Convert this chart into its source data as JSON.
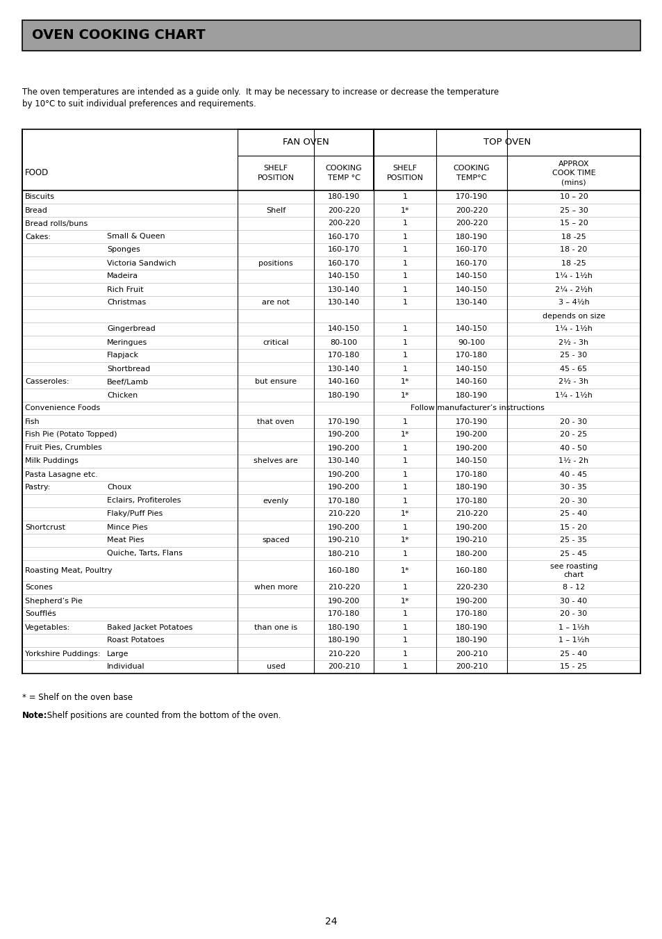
{
  "title": "OVEN COOKING CHART",
  "intro_text1": "The oven temperatures are intended as a guide only.  It may be necessary to increase or decrease the temperature",
  "intro_text2": "by 10°C to suit individual preferences and requirements.",
  "footer_note1": "* = Shelf on the oven base",
  "footer_note2_bold": "Note:",
  "footer_note2_rest": " Shelf positions are counted from the bottom of the oven.",
  "page_number": "24",
  "rows": [
    [
      "Biscuits",
      "",
      "",
      "180-190",
      "1",
      "170-190",
      "10 – 20"
    ],
    [
      "Bread",
      "",
      "Shelf",
      "200-220",
      "1*",
      "200-220",
      "25 – 30"
    ],
    [
      "Bread rolls/buns",
      "",
      "",
      "200-220",
      "1",
      "200-220",
      "15 – 20"
    ],
    [
      "Cakes:",
      "Small & Queen",
      "",
      "160-170",
      "1",
      "180-190",
      "18 -25"
    ],
    [
      "",
      "Sponges",
      "",
      "160-170",
      "1",
      "160-170",
      "18 - 20"
    ],
    [
      "",
      "Victoria Sandwich",
      "positions",
      "160-170",
      "1",
      "160-170",
      "18 -25"
    ],
    [
      "",
      "Madeira",
      "",
      "140-150",
      "1",
      "140-150",
      "1¼ - 1½h"
    ],
    [
      "",
      "Rich Fruit",
      "",
      "130-140",
      "1",
      "140-150",
      "2¼ - 2½h"
    ],
    [
      "",
      "Christmas",
      "are not",
      "130-140",
      "1",
      "130-140",
      "3 – 4½h"
    ],
    [
      "",
      "",
      "",
      "",
      "",
      "",
      "depends on size"
    ],
    [
      "",
      "Gingerbread",
      "",
      "140-150",
      "1",
      "140-150",
      "1¼ - 1½h"
    ],
    [
      "",
      "Meringues",
      "critical",
      "80-100",
      "1",
      "90-100",
      "2½ - 3h"
    ],
    [
      "",
      "Flapjack",
      "",
      "170-180",
      "1",
      "170-180",
      "25 - 30"
    ],
    [
      "",
      "Shortbread",
      "",
      "130-140",
      "1",
      "140-150",
      "45 - 65"
    ],
    [
      "Casseroles:",
      "Beef/Lamb",
      "but ensure",
      "140-160",
      "1*",
      "140-160",
      "2½ - 3h"
    ],
    [
      "",
      "Chicken",
      "",
      "180-190",
      "1*",
      "180-190",
      "1¼ - 1½h"
    ],
    [
      "Convenience Foods",
      "",
      "",
      "Follow manufacturer’s instructions",
      "",
      "",
      ""
    ],
    [
      "Fish",
      "",
      "that oven",
      "170-190",
      "1",
      "170-190",
      "20 - 30"
    ],
    [
      "Fish Pie (Potato Topped)",
      "",
      "",
      "190-200",
      "1*",
      "190-200",
      "20 - 25"
    ],
    [
      "Fruit Pies, Crumbles",
      "",
      "",
      "190-200",
      "1",
      "190-200",
      "40 - 50"
    ],
    [
      "Milk Puddings",
      "",
      "shelves are",
      "130-140",
      "1",
      "140-150",
      "1½ - 2h"
    ],
    [
      "Pasta Lasagne etc.",
      "",
      "",
      "190-200",
      "1",
      "170-180",
      "40 - 45"
    ],
    [
      "Pastry:",
      "Choux",
      "",
      "190-200",
      "1",
      "180-190",
      "30 - 35"
    ],
    [
      "",
      "Eclairs, Profiteroles",
      "evenly",
      "170-180",
      "1",
      "170-180",
      "20 - 30"
    ],
    [
      "",
      "Flaky/Puff Pies",
      "",
      "210-220",
      "1*",
      "210-220",
      "25 - 40"
    ],
    [
      "Shortcrust",
      "Mince Pies",
      "",
      "190-200",
      "1",
      "190-200",
      "15 - 20"
    ],
    [
      "",
      "Meat Pies",
      "spaced",
      "190-210",
      "1*",
      "190-210",
      "25 - 35"
    ],
    [
      "",
      "Quiche, Tarts, Flans",
      "",
      "180-210",
      "1",
      "180-200",
      "25 - 45"
    ],
    [
      "Roasting Meat, Poultry",
      "",
      "",
      "160-180",
      "1*",
      "160-180",
      "see roasting\nchart"
    ],
    [
      "Scones",
      "",
      "when more",
      "210-220",
      "1",
      "220-230",
      "8 - 12"
    ],
    [
      "Shepherd’s Pie",
      "",
      "",
      "190-200",
      "1*",
      "190-200",
      "30 - 40"
    ],
    [
      "Soufflés",
      "",
      "",
      "170-180",
      "1",
      "170-180",
      "20 - 30"
    ],
    [
      "Vegetables:",
      "Baked Jacket Potatoes",
      "than one is",
      "180-190",
      "1",
      "180-190",
      "1 – 1½h"
    ],
    [
      "",
      "Roast Potatoes",
      "",
      "180-190",
      "1",
      "180-190",
      "1 – 1½h"
    ],
    [
      "Yorkshire Puddings:",
      "Large",
      "",
      "210-220",
      "1",
      "200-210",
      "25 - 40"
    ],
    [
      "",
      "Individual",
      "used",
      "200-210",
      "1",
      "200-210",
      "15 - 25"
    ]
  ],
  "background_color": "#ffffff",
  "header_bg_color": "#9e9e9e",
  "text_color": "#000000",
  "line_color": "#000000",
  "thin_line_color": "#aaaaaa"
}
